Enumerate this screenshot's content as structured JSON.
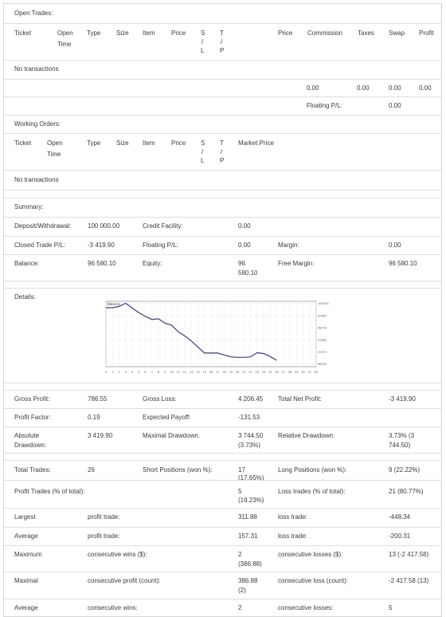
{
  "open_trades": {
    "title": "Open Trades:",
    "headers": {
      "ticket": "Ticket",
      "open_time": "Open Time",
      "type": "Type",
      "size": "Size",
      "item": "Item",
      "price": "Price",
      "sl": [
        "S",
        "/",
        "L"
      ],
      "tp": [
        "T",
        "/",
        "P"
      ],
      "price2": "Price",
      "commission": "Commission",
      "taxes": "Taxes",
      "swap": "Swap",
      "profit": "Profit"
    },
    "no_transactions": "No transactions",
    "totals": {
      "commission": "0.00",
      "taxes": "0.00",
      "swap": "0.00",
      "profit": "0.00"
    },
    "floating_label": "Floating P/L:",
    "floating_value": "0.00"
  },
  "working_orders": {
    "title": "Working Orders:",
    "headers": {
      "ticket": "Ticket",
      "open_time": "Open Time",
      "type": "Type",
      "size": "Size",
      "item": "Item",
      "price": "Price",
      "sl": [
        "S",
        "/",
        "L"
      ],
      "tp": [
        "T",
        "/",
        "P"
      ],
      "market_price": "Market Price"
    },
    "no_transactions": "No transactions"
  },
  "summary": {
    "title": "Summary:",
    "deposit_label": "Deposit/Withdrawal:",
    "deposit_value": "100 000.00",
    "credit_label": "Credit Facility:",
    "credit_value": "0.00",
    "closed_label": "Closed Trade P/L:",
    "closed_value": "-3 419.90",
    "floating_label": "Floating P/L:",
    "floating_value": "0.00",
    "margin_label": "Margin:",
    "margin_value": "0.00",
    "balance_label": "Balance:",
    "balance_value": "96 580.10",
    "equity_label": "Equity:",
    "equity_value": [
      "96",
      "580.10"
    ],
    "free_margin_label": "Free Margin:",
    "free_margin_value": "96 580.10"
  },
  "details": {
    "title": "Details:",
    "chart_title": "Balance"
  },
  "chart_data": {
    "type": "line",
    "title": "Balance",
    "x": [
      0,
      1,
      2,
      3,
      4,
      5,
      6,
      7,
      8,
      9,
      10,
      11,
      12,
      13,
      14,
      15,
      16,
      17,
      18,
      19,
      20,
      21,
      22,
      23,
      24,
      25,
      26
    ],
    "y": [
      99900,
      99900,
      99980,
      100180,
      99880,
      99580,
      99350,
      99160,
      99200,
      98920,
      98800,
      98380,
      98120,
      97800,
      97420,
      97040,
      97040,
      97040,
      96920,
      96800,
      96770,
      96770,
      96800,
      97060,
      97010,
      96820,
      96580
    ],
    "x_ticks": [
      "0",
      "1",
      "2",
      "3",
      "4",
      "5",
      "6",
      "7",
      "8",
      "9",
      "10",
      "11",
      "12",
      "13",
      "14",
      "15",
      "16",
      "17",
      "18",
      "19",
      "20",
      "21",
      "22",
      "23",
      "24",
      "25",
      "26",
      "27",
      "28",
      "29",
      "30",
      "31",
      "32"
    ],
    "y_ticks": [
      "100205",
      "99587",
      "98719",
      "97850",
      "97071",
      "96293"
    ],
    "xlim": [
      0,
      32
    ],
    "ylim": [
      96180,
      100300
    ],
    "grid": true,
    "color": "#3a3a8c"
  },
  "stats": {
    "gross_profit_label": "Gross Profit:",
    "gross_profit": "786.55",
    "gross_loss_label": "Gross Loss:",
    "gross_loss": "4 206.45",
    "net_profit_label": "Total Net Profit:",
    "net_profit": "-3 419.90",
    "profit_factor_label": "Profit Factor:",
    "profit_factor": "0.19",
    "expected_payoff_label": "Expected Payoff:",
    "expected_payoff": "-131.53",
    "absolute_dd_label": [
      "Absolute",
      "Drawdown:"
    ],
    "absolute_dd": "3 419.90",
    "maximal_dd_label": "Maximal Drawdown:",
    "maximal_dd": [
      "3 744.50",
      "(3.73%)"
    ],
    "relative_dd_label": "Relative Drawdown:",
    "relative_dd": [
      "3.73% (3",
      "744.50)"
    ]
  },
  "trades": {
    "total_label": "Total Trades:",
    "total": "26",
    "short_label": "Short Positions (won %):",
    "short": [
      "17",
      "(17.65%)"
    ],
    "long_label": "Long Positions (won %):",
    "long": "9 (22.22%)",
    "profit_trades_label": "Profit Trades (% of total):",
    "profit_trades": [
      "5",
      "(19.23%)"
    ],
    "loss_trades_label": "Loss trades (% of total):",
    "loss_trades": "21 (80.77%)",
    "largest": "Largest",
    "largest_profit_label": "profit trade:",
    "largest_profit": "311.88",
    "largest_loss_label": "loss trade:",
    "largest_loss": "-448.34",
    "average": "Average",
    "average_profit_label": "profit trade:",
    "average_profit": "157.31",
    "average_loss_label": "loss trade:",
    "average_loss": "-200.31",
    "maximum": "Maximum",
    "max_wins_label": "consecutive wins ($):",
    "max_wins": [
      "2",
      "(386.88)"
    ],
    "max_losses_label": "consecutive losses ($):",
    "max_losses": "13 (-2 417.58)",
    "maximal": "Maximal",
    "maximal_profit_label": "consecutive profit (count):",
    "maximal_profit": [
      "386.88",
      "(2)"
    ],
    "maximal_loss_label": "consecutive loss (count):",
    "maximal_loss": "-2 417.58 (13)",
    "average2": "Average",
    "avg_wins_label": "consecutive wins:",
    "avg_wins": "2",
    "avg_losses_label": "consecutive losses:",
    "avg_losses": "5"
  }
}
